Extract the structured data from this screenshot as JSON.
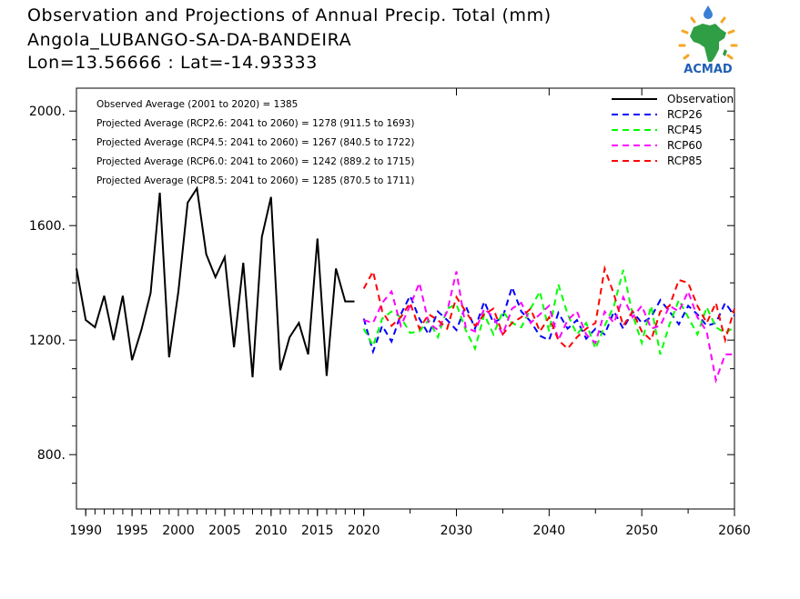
{
  "title": {
    "line1": "Observation and Projections of Annual Precip. Total (mm)",
    "line2": "Angola_LUBANGO-SA-DA-BANDEIRA",
    "line3": "Lon=13.56666 : Lat=-14.93333"
  },
  "logo": {
    "text": "ACMAD"
  },
  "annotations": [
    "Observed Average (2001 to 2020) = 1385",
    "Projected Average (RCP2.6: 2041 to 2060) = 1278 (911.5 to 1693)",
    "Projected Average (RCP4.5: 2041 to 2060) = 1267 (840.5 to 1722)",
    "Projected Average (RCP6.0: 2041 to 2060) = 1242 (889.2 to 1715)",
    "Projected Average (RCP8.5: 2041 to 2060) = 1285 (870.5 to 1711)"
  ],
  "chart_data": {
    "type": "line",
    "xlim": [
      1989,
      2060
    ],
    "ylim": [
      610,
      2080
    ],
    "x_ticks_labeled": [
      1990,
      1995,
      2000,
      2005,
      2010,
      2015,
      2020,
      2030,
      2040,
      2050,
      2060
    ],
    "x_tick_labels": [
      "1990",
      "1995",
      "2000",
      "2005",
      "2010",
      "2015",
      "2020",
      "2030",
      "2040",
      "2050",
      "2060"
    ],
    "y_ticks": [
      800,
      1200,
      1600,
      2000
    ],
    "y_tick_labels": [
      "800.",
      "1200.",
      "1600.",
      "2000."
    ],
    "legend_position": "top-right",
    "series": [
      {
        "name": "Observation",
        "color": "#000000",
        "dash": "solid",
        "x": [
          1989,
          1990,
          1991,
          1992,
          1993,
          1994,
          1995,
          1996,
          1997,
          1998,
          1999,
          2000,
          2001,
          2002,
          2003,
          2004,
          2005,
          2006,
          2007,
          2008,
          2009,
          2010,
          2011,
          2012,
          2013,
          2014,
          2015,
          2016,
          2017,
          2018,
          2019
        ],
        "y": [
          1450,
          1270,
          1245,
          1355,
          1200,
          1355,
          1130,
          1235,
          1365,
          1715,
          1140,
          1370,
          1680,
          1730,
          1500,
          1420,
          1490,
          1175,
          1470,
          1070,
          1560,
          1700,
          1095,
          1210,
          1260,
          1150,
          1555,
          1075,
          1450,
          1335,
          1335
        ]
      },
      {
        "name": "RCP26",
        "color": "#0000ff",
        "dash": "dashed",
        "x": [
          2020,
          2021,
          2022,
          2023,
          2024,
          2025,
          2026,
          2027,
          2028,
          2029,
          2030,
          2031,
          2032,
          2033,
          2034,
          2035,
          2036,
          2037,
          2038,
          2039,
          2040,
          2041,
          2042,
          2043,
          2044,
          2045,
          2046,
          2047,
          2048,
          2049,
          2050,
          2051,
          2052,
          2053,
          2054,
          2055,
          2056,
          2057,
          2058,
          2059,
          2060
        ],
        "y": [
          1275,
          1160,
          1250,
          1195,
          1290,
          1355,
          1275,
          1220,
          1300,
          1270,
          1235,
          1320,
          1240,
          1335,
          1260,
          1280,
          1385,
          1300,
          1265,
          1215,
          1200,
          1295,
          1240,
          1270,
          1205,
          1240,
          1220,
          1300,
          1240,
          1300,
          1260,
          1280,
          1340,
          1300,
          1255,
          1320,
          1290,
          1250,
          1260,
          1330,
          1285
        ]
      },
      {
        "name": "RCP45",
        "color": "#00ff00",
        "dash": "dashed",
        "x": [
          2020,
          2021,
          2022,
          2023,
          2024,
          2025,
          2026,
          2027,
          2028,
          2029,
          2030,
          2031,
          2032,
          2033,
          2034,
          2035,
          2036,
          2037,
          2038,
          2039,
          2040,
          2041,
          2042,
          2043,
          2044,
          2045,
          2046,
          2047,
          2048,
          2049,
          2050,
          2051,
          2052,
          2053,
          2054,
          2055,
          2056,
          2057,
          2058,
          2059,
          2060
        ],
        "y": [
          1240,
          1180,
          1275,
          1300,
          1280,
          1225,
          1230,
          1270,
          1210,
          1310,
          1325,
          1235,
          1170,
          1290,
          1220,
          1300,
          1260,
          1245,
          1310,
          1370,
          1230,
          1395,
          1290,
          1220,
          1260,
          1170,
          1250,
          1320,
          1445,
          1290,
          1190,
          1320,
          1150,
          1255,
          1340,
          1280,
          1220,
          1315,
          1245,
          1225,
          1245
        ]
      },
      {
        "name": "RCP60",
        "color": "#ff00ff",
        "dash": "dashed",
        "x": [
          2020,
          2021,
          2022,
          2023,
          2024,
          2025,
          2026,
          2027,
          2028,
          2029,
          2030,
          2031,
          2032,
          2033,
          2034,
          2035,
          2036,
          2037,
          2038,
          2039,
          2040,
          2041,
          2042,
          2043,
          2044,
          2045,
          2046,
          2047,
          2048,
          2049,
          2050,
          2051,
          2052,
          2053,
          2054,
          2055,
          2056,
          2057,
          2058,
          2059,
          2060
        ],
        "y": [
          1270,
          1260,
          1330,
          1370,
          1250,
          1320,
          1400,
          1260,
          1235,
          1300,
          1440,
          1245,
          1230,
          1310,
          1280,
          1220,
          1310,
          1330,
          1260,
          1290,
          1320,
          1200,
          1270,
          1300,
          1220,
          1190,
          1300,
          1260,
          1350,
          1280,
          1320,
          1240,
          1250,
          1320,
          1300,
          1370,
          1280,
          1230,
          1060,
          1150,
          1150
        ]
      },
      {
        "name": "RCP85",
        "color": "#ff0000",
        "dash": "dashed",
        "x": [
          2020,
          2021,
          2022,
          2023,
          2024,
          2025,
          2026,
          2027,
          2028,
          2029,
          2030,
          2031,
          2032,
          2033,
          2034,
          2035,
          2036,
          2037,
          2038,
          2039,
          2040,
          2041,
          2042,
          2043,
          2044,
          2045,
          2046,
          2047,
          2048,
          2049,
          2050,
          2051,
          2052,
          2053,
          2054,
          2055,
          2056,
          2057,
          2058,
          2059,
          2060
        ],
        "y": [
          1380,
          1440,
          1300,
          1250,
          1280,
          1330,
          1240,
          1290,
          1270,
          1240,
          1350,
          1300,
          1250,
          1290,
          1310,
          1220,
          1260,
          1280,
          1310,
          1230,
          1280,
          1200,
          1170,
          1210,
          1240,
          1260,
          1450,
          1360,
          1250,
          1300,
          1230,
          1200,
          1300,
          1320,
          1410,
          1400,
          1320,
          1260,
          1330,
          1200,
          1310
        ]
      }
    ]
  }
}
